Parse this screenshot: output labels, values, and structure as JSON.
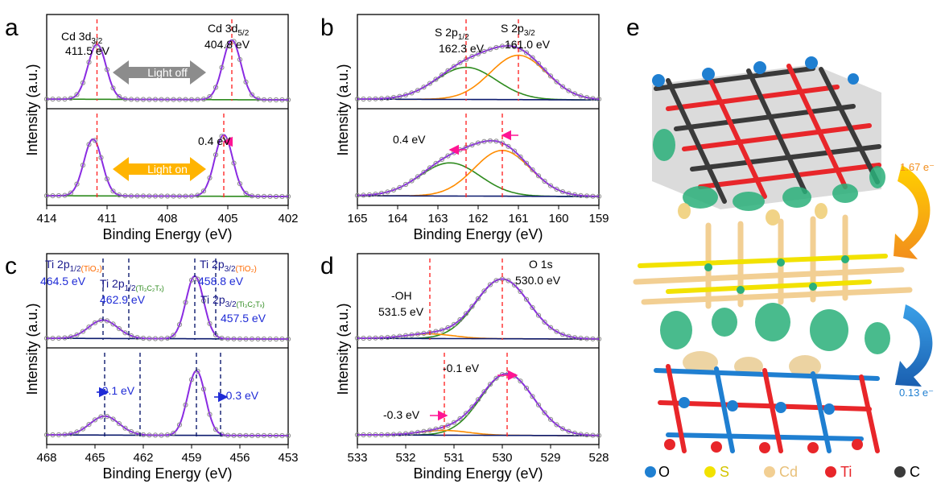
{
  "figure": {
    "panel_letters": [
      "a",
      "b",
      "c",
      "d",
      "e"
    ],
    "xlabel": "Binding Energy (eV)",
    "ylabel": "Intensity (a.u.)"
  },
  "colors": {
    "envelope": "#8a2be2",
    "green": "#2e8b1e",
    "orange": "#ff8c00",
    "navy": "#0d1b6e",
    "dashed": "#ff2a2a",
    "shift_arrow": "#ff1493",
    "blue_text": "#1f2bd6",
    "points": "#8c8c8c",
    "light_off": "#8c8c8c",
    "light_on": "#ffb400",
    "electron_top": "#f28e1c",
    "electron_bottom": "#1f7fd1"
  },
  "chart_data": [
    {
      "id": "a",
      "type": "line",
      "title": "",
      "xlabel": "Binding Energy (eV)",
      "ylabel": "Intensity (a.u.)",
      "xlim": [
        414,
        402
      ],
      "xticks": [
        414,
        411,
        408,
        405,
        402
      ],
      "annotations": {
        "peak1_name": "Cd 3d",
        "peak1_sub": "3/2",
        "peak1_value": "411.5 eV",
        "peak2_name": "Cd 3d",
        "peak2_sub": "5/2",
        "peak2_value": "404.8 eV",
        "light_off": "Light off",
        "light_on": "Light on",
        "shift": "0.4 eV"
      },
      "panels": [
        {
          "label": "Light off",
          "peaks": [
            {
              "center": 411.5,
              "height": 0.72,
              "width": 0.45
            },
            {
              "center": 404.8,
              "height": 0.78,
              "width": 0.45
            }
          ],
          "background": "green",
          "dashed": [
            411.5,
            404.8
          ]
        },
        {
          "label": "Light on",
          "peaks": [
            {
              "center": 411.7,
              "height": 0.72,
              "width": 0.45
            },
            {
              "center": 405.2,
              "height": 0.78,
              "width": 0.45
            }
          ],
          "background": "green",
          "dashed": [
            411.5,
            405.2
          ]
        }
      ]
    },
    {
      "id": "b",
      "type": "line",
      "title": "",
      "xlabel": "Binding Energy (eV)",
      "ylabel": "Intensity (a.u.)",
      "xlim": [
        165,
        159
      ],
      "xticks": [
        165,
        164,
        163,
        162,
        161,
        160,
        159
      ],
      "annotations": {
        "peak1_name": "S 2p",
        "peak1_sub": "1/2",
        "peak1_value": "162.3 eV",
        "peak2_name": "S 2p",
        "peak2_sub": "3/2",
        "peak2_value": "161.0 eV",
        "shift1": "0.4 eV"
      },
      "panels": [
        {
          "peaks": [
            {
              "center": 162.3,
              "height": 0.42,
              "width": 0.75,
              "color": "green"
            },
            {
              "center": 161.0,
              "height": 0.58,
              "width": 0.7,
              "color": "orange"
            }
          ],
          "dashed": [
            162.3,
            161.0
          ]
        },
        {
          "peaks": [
            {
              "center": 162.7,
              "height": 0.42,
              "width": 0.75,
              "color": "green"
            },
            {
              "center": 161.4,
              "height": 0.58,
              "width": 0.7,
              "color": "orange"
            }
          ],
          "dashed": [
            162.3,
            161.4
          ]
        }
      ]
    },
    {
      "id": "c",
      "type": "line",
      "title": "",
      "xlabel": "Binding Energy (eV)",
      "ylabel": "Intensity (a.u.)",
      "xlim": [
        468,
        453
      ],
      "xticks": [
        468,
        465,
        462,
        459,
        456,
        453
      ],
      "annotations": {
        "l1": "Ti 2p",
        "l1_sub": "1/2",
        "l1_tag": "(TiO₂)",
        "l1_value": "464.5 eV",
        "l2": "Ti 2p",
        "l2_sub": "1/2",
        "l2_tag": "(Ti₃C₂Tₓ)",
        "l2_value": "462.9 eV",
        "l3": "Ti 2p",
        "l3_sub": "3/2",
        "l3_tag": "(TiO₂)",
        "l3_value": "458.8 eV",
        "l4": "Ti 2p",
        "l4_sub": "3/2",
        "l4_tag": "(Ti₃C₂Tₓ)",
        "l4_value": "457.5 eV",
        "shift1": "-0.1 eV",
        "shift2": "-0.3 eV"
      },
      "panels": [
        {
          "peaks": [
            {
              "center": 464.5,
              "height": 0.24,
              "width": 0.9
            },
            {
              "center": 458.8,
              "height": 0.82,
              "width": 0.55
            }
          ],
          "dashed": [
            464.5,
            462.9,
            458.8,
            457.5
          ]
        },
        {
          "peaks": [
            {
              "center": 464.4,
              "height": 0.24,
              "width": 0.9
            },
            {
              "center": 458.7,
              "height": 0.82,
              "width": 0.55
            }
          ],
          "dashed": [
            464.4,
            462.2,
            458.7,
            457.2
          ]
        }
      ]
    },
    {
      "id": "d",
      "type": "line",
      "title": "",
      "xlabel": "Binding Energy (eV)",
      "ylabel": "Intensity (a.u.)",
      "xlim": [
        533,
        528
      ],
      "xticks": [
        533,
        532,
        531,
        530,
        529,
        528
      ],
      "annotations": {
        "oh": "-OH",
        "oh_value": "531.5 eV",
        "o1s": "O 1s",
        "o1s_value": "530.0 eV",
        "shift1": "-0.1 eV",
        "shift2": "-0.3 eV"
      },
      "panels": [
        {
          "peaks": [
            {
              "center": 530.0,
              "height": 0.78,
              "width": 0.55,
              "color": "green"
            },
            {
              "center": 531.5,
              "height": 0.06,
              "width": 0.5,
              "color": "orange"
            }
          ],
          "dashed": [
            531.5,
            530.0
          ]
        },
        {
          "peaks": [
            {
              "center": 529.9,
              "height": 0.78,
              "width": 0.55,
              "color": "green"
            },
            {
              "center": 531.2,
              "height": 0.06,
              "width": 0.5,
              "color": "orange"
            }
          ],
          "dashed": [
            531.2,
            529.9
          ]
        }
      ]
    }
  ],
  "panel_e": {
    "charge_top": "1.67 e⁻",
    "charge_bottom": "0.13 e⁻",
    "legend": [
      {
        "label": "O",
        "color": "#1f7fd1"
      },
      {
        "label": "S",
        "color": "#f2e200"
      },
      {
        "label": "Cd",
        "color": "#f2cf93"
      },
      {
        "label": "Ti",
        "color": "#e8262a"
      },
      {
        "label": "C",
        "color": "#3a3a3a"
      }
    ]
  }
}
